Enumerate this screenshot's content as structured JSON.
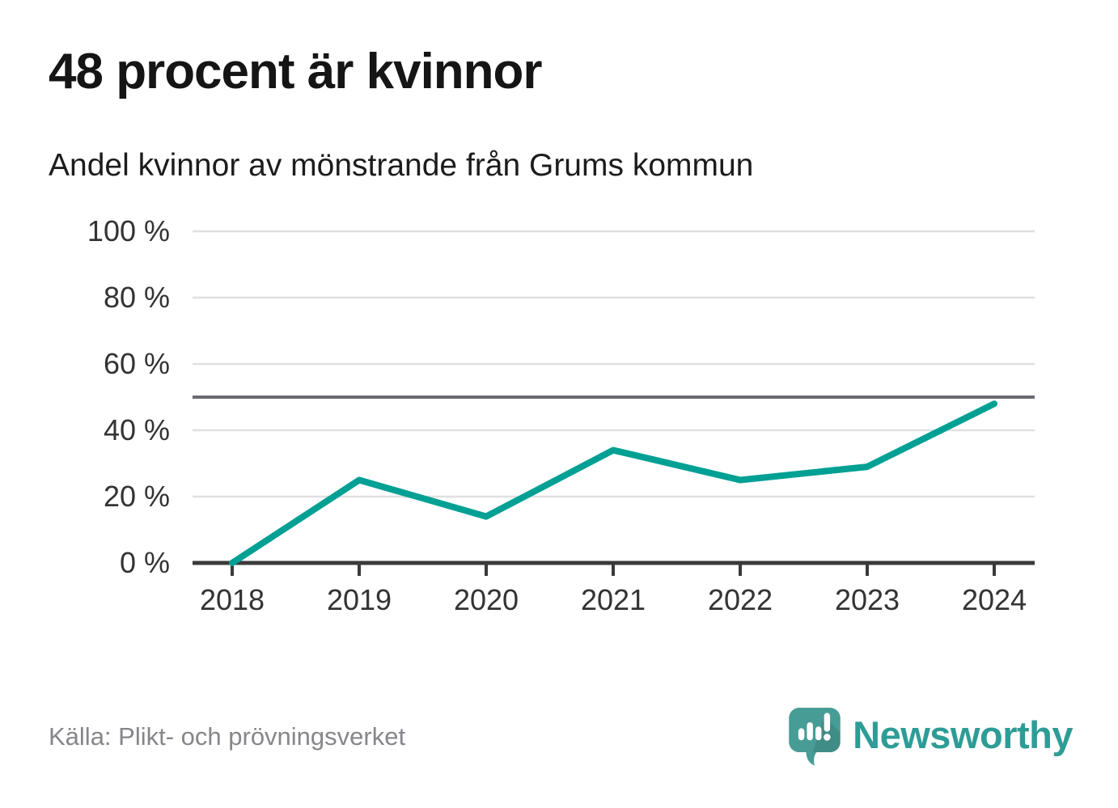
{
  "header": {
    "title": "48 procent är kvinnor",
    "subtitle": "Andel kvinnor av mönstrande från Grums kommun"
  },
  "footer": {
    "source": "Källa: Plikt- och prövningsverket",
    "brand": "Newsworthy",
    "brand_icon": "speech-bubble-bar-chart-exclamation"
  },
  "colors": {
    "line": "#00a094",
    "grid": "#e0e0e2",
    "reference_line": "#6b6b72",
    "axis": "#3a3a3a",
    "tick_text": "#333333",
    "source_text": "#86868b",
    "brand_text": "#2e9c96",
    "brand_bubble": "#489c96"
  },
  "chart_data": {
    "type": "line",
    "title": "48 procent är kvinnor",
    "subtitle": "Andel kvinnor av mönstrande från Grums kommun",
    "x": [
      2018,
      2019,
      2020,
      2021,
      2022,
      2023,
      2024
    ],
    "xtick_labels": [
      "2018",
      "2019",
      "2020",
      "2021",
      "2022",
      "2023",
      "2024"
    ],
    "series": [
      {
        "name": "Andel kvinnor av mönstrande",
        "values": [
          0,
          25,
          14,
          34,
          25,
          29,
          48
        ],
        "color": "#00a094"
      }
    ],
    "unit": "%",
    "ylim": [
      0,
      100
    ],
    "yticks": [
      0,
      20,
      40,
      60,
      80,
      100
    ],
    "ytick_labels": [
      "0 %",
      "20 %",
      "40 %",
      "60 %",
      "80 %",
      "100 %"
    ],
    "reference_line": 50,
    "grid": "horizontal",
    "legend": "none"
  }
}
